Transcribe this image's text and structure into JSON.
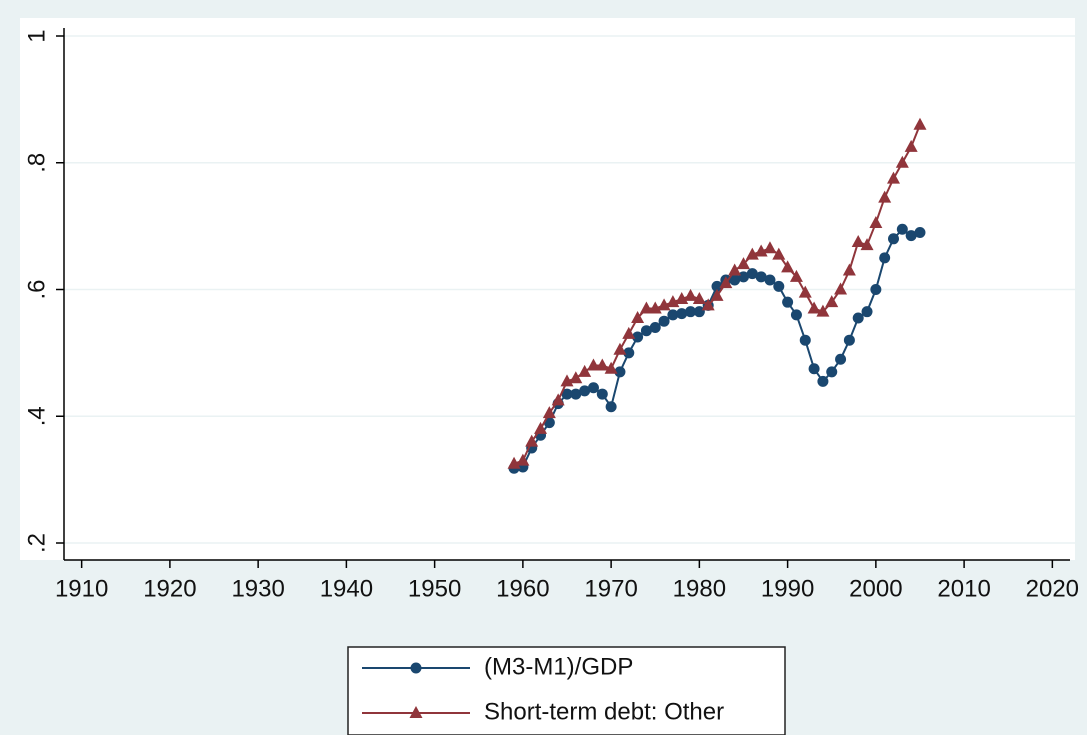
{
  "chart_data": {
    "type": "line",
    "x": [
      1959,
      1960,
      1961,
      1962,
      1963,
      1964,
      1965,
      1966,
      1967,
      1968,
      1969,
      1970,
      1971,
      1972,
      1973,
      1974,
      1975,
      1976,
      1977,
      1978,
      1979,
      1980,
      1981,
      1982,
      1983,
      1984,
      1985,
      1986,
      1987,
      1988,
      1989,
      1990,
      1991,
      1992,
      1993,
      1994,
      1995,
      1996,
      1997,
      1998,
      1999,
      2000,
      2001,
      2002,
      2003,
      2004,
      2005
    ],
    "series": [
      {
        "name": "(M3-M1)/GDP",
        "color": "#1a476f",
        "marker": "circle",
        "values": [
          0.318,
          0.32,
          0.35,
          0.37,
          0.39,
          0.42,
          0.435,
          0.435,
          0.44,
          0.445,
          0.435,
          0.415,
          0.47,
          0.5,
          0.525,
          0.535,
          0.54,
          0.55,
          0.56,
          0.562,
          0.565,
          0.565,
          0.575,
          0.605,
          0.615,
          0.615,
          0.62,
          0.625,
          0.62,
          0.615,
          0.605,
          0.58,
          0.56,
          0.52,
          0.475,
          0.455,
          0.47,
          0.49,
          0.52,
          0.555,
          0.565,
          0.6,
          0.65,
          0.68,
          0.695,
          0.685,
          0.69
        ]
      },
      {
        "name": "Short-term debt: Other",
        "color": "#90353b",
        "marker": "triangle",
        "values": [
          0.325,
          0.33,
          0.36,
          0.38,
          0.405,
          0.425,
          0.455,
          0.46,
          0.47,
          0.48,
          0.48,
          0.475,
          0.505,
          0.53,
          0.555,
          0.57,
          0.57,
          0.575,
          0.58,
          0.585,
          0.59,
          0.585,
          0.575,
          0.59,
          0.61,
          0.63,
          0.64,
          0.655,
          0.66,
          0.665,
          0.655,
          0.635,
          0.62,
          0.595,
          0.57,
          0.565,
          0.58,
          0.6,
          0.63,
          0.675,
          0.67,
          0.705,
          0.745,
          0.775,
          0.8,
          0.825,
          0.86
        ]
      }
    ],
    "xlim": [
      1908,
      2022
    ],
    "xticks": [
      1910,
      1920,
      1930,
      1940,
      1950,
      1960,
      1970,
      1980,
      1990,
      2000,
      2010,
      2020
    ],
    "ylim": [
      0.2,
      1
    ],
    "yticks": [
      {
        "value": 0.2,
        "label": ".2"
      },
      {
        "value": 0.4,
        "label": ".4"
      },
      {
        "value": 0.6,
        "label": ".6"
      },
      {
        "value": 0.8,
        "label": ".8"
      },
      1
    ],
    "grid": true,
    "legend": "bottom"
  }
}
